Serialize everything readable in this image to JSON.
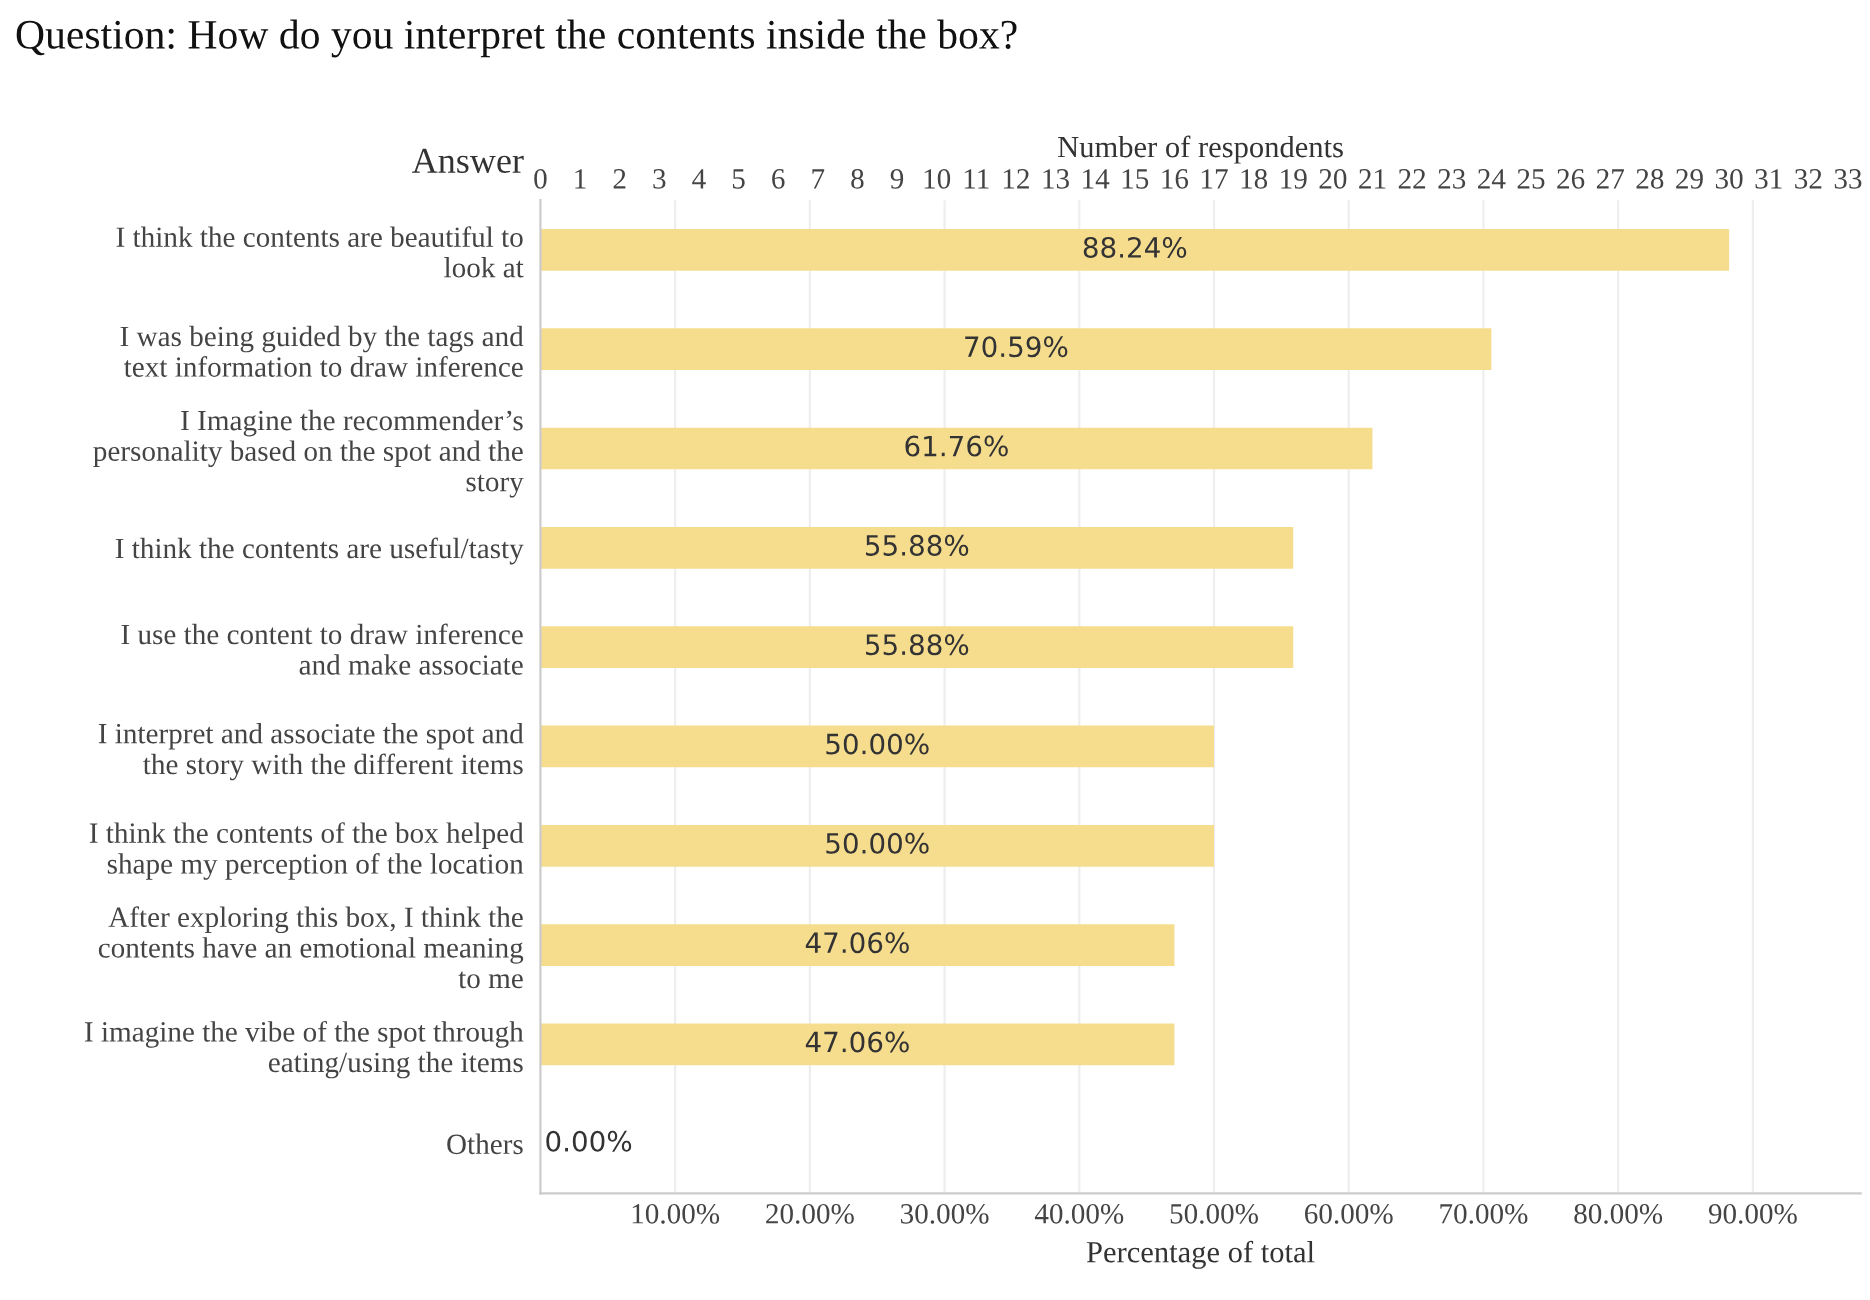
{
  "chart_data": {
    "type": "bar",
    "orientation": "horizontal",
    "title": "Question: How do you interpret the contents inside the box?",
    "ylabel": "Answer",
    "xlabel": "Percentage of total",
    "x2label": "Number of respondents",
    "categories": [
      "I think the contents are beautiful to\nlook at",
      "I was being guided by the tags and\ntext information to draw inference",
      "I Imagine the recommender’s\npersonality based on the spot and the\nstory",
      "I think the contents are useful/tasty",
      "I use the content to draw inference\nand make associate",
      "I interpret and associate the spot and\nthe story with the different items",
      "I think the contents of the box helped\nshape my perception of the location",
      "After exploring this box, I think the\ncontents have an emotional meaning\nto me",
      "I imagine the vibe of the spot through\neating/using the items",
      "Others"
    ],
    "values": [
      88.24,
      70.59,
      61.76,
      55.88,
      55.88,
      50.0,
      50.0,
      47.06,
      47.06,
      0.0
    ],
    "value_labels": [
      "88.24%",
      "70.59%",
      "61.76%",
      "55.88%",
      "55.88%",
      "50.00%",
      "50.00%",
      "47.06%",
      "47.06%",
      "0.00%"
    ],
    "color": "#f6dd8e",
    "xlim": [
      0,
      98
    ],
    "xticks": [
      {
        "value": 10,
        "label": "10.00%"
      },
      {
        "value": 20,
        "label": "20.00%"
      },
      {
        "value": 30,
        "label": "30.00%"
      },
      {
        "value": 40,
        "label": "40.00%"
      },
      {
        "value": 50,
        "label": "50.00%"
      },
      {
        "value": 60,
        "label": "60.00%"
      },
      {
        "value": 70,
        "label": "70.00%"
      },
      {
        "value": 80,
        "label": "80.00%"
      },
      {
        "value": 90,
        "label": "90.00%"
      }
    ],
    "x2lim": [
      0,
      33.32
    ],
    "x2ticks": [
      0,
      1,
      2,
      3,
      4,
      5,
      6,
      7,
      8,
      9,
      10,
      11,
      12,
      13,
      14,
      15,
      16,
      17,
      18,
      19,
      20,
      21,
      22,
      23,
      24,
      25,
      26,
      27,
      28,
      29,
      30,
      31,
      32,
      33
    ],
    "grid": "x"
  }
}
